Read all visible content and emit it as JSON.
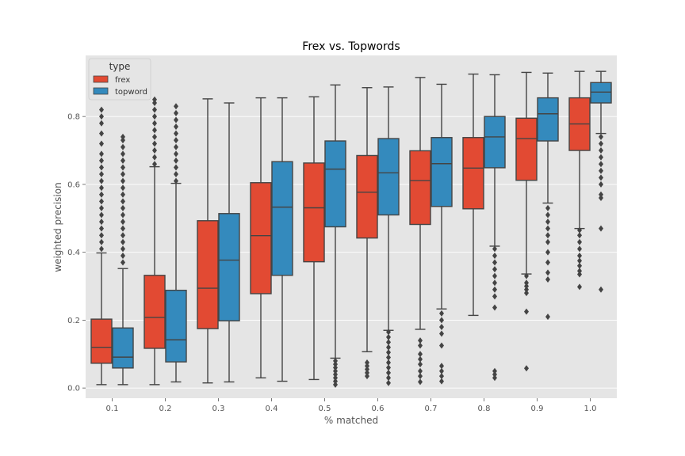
{
  "chart_data": {
    "type": "box",
    "title": "Frex vs. Topwords",
    "xlabel": "% matched",
    "ylabel": "weighted precision",
    "ylim": [
      -0.03,
      0.98
    ],
    "yticks": [
      "0.0",
      "0.2",
      "0.4",
      "0.6",
      "0.8"
    ],
    "ytick_values": [
      0.0,
      0.2,
      0.4,
      0.6,
      0.8
    ],
    "grid": true,
    "legend_position": "top-left",
    "legend_title": "type",
    "categories": [
      "0.1",
      "0.2",
      "0.3",
      "0.4",
      "0.5",
      "0.6",
      "0.7",
      "0.8",
      "0.9",
      "1.0"
    ],
    "series": [
      {
        "name": "frex",
        "color": "#E24A33",
        "boxes": [
          {
            "whisker_low": 0.01,
            "q1": 0.073,
            "median": 0.12,
            "q3": 0.203,
            "whisker_high": 0.398,
            "outliers": [
              0.41,
              0.43,
              0.45,
              0.47,
              0.49,
              0.51,
              0.53,
              0.55,
              0.57,
              0.59,
              0.61,
              0.63,
              0.65,
              0.67,
              0.69,
              0.72,
              0.75,
              0.78,
              0.8,
              0.82
            ]
          },
          {
            "whisker_low": 0.01,
            "q1": 0.117,
            "median": 0.208,
            "q3": 0.332,
            "whisker_high": 0.652,
            "outliers": [
              0.66,
              0.68,
              0.7,
              0.72,
              0.74,
              0.76,
              0.78,
              0.8,
              0.82,
              0.84,
              0.85
            ]
          },
          {
            "whisker_low": 0.015,
            "q1": 0.175,
            "median": 0.294,
            "q3": 0.493,
            "whisker_high": 0.852,
            "outliers": []
          },
          {
            "whisker_low": 0.03,
            "q1": 0.278,
            "median": 0.449,
            "q3": 0.605,
            "whisker_high": 0.855,
            "outliers": []
          },
          {
            "whisker_low": 0.025,
            "q1": 0.372,
            "median": 0.531,
            "q3": 0.663,
            "whisker_high": 0.858,
            "outliers": []
          },
          {
            "whisker_low": 0.107,
            "q1": 0.442,
            "median": 0.577,
            "q3": 0.685,
            "whisker_high": 0.885,
            "outliers": [
              0.035,
              0.045,
              0.055,
              0.065,
              0.075
            ]
          },
          {
            "whisker_low": 0.173,
            "q1": 0.482,
            "median": 0.611,
            "q3": 0.699,
            "whisker_high": 0.915,
            "outliers": [
              0.018,
              0.035,
              0.05,
              0.07,
              0.085,
              0.1,
              0.125,
              0.14
            ]
          },
          {
            "whisker_low": 0.214,
            "q1": 0.528,
            "median": 0.648,
            "q3": 0.738,
            "whisker_high": 0.925,
            "outliers": []
          },
          {
            "whisker_low": 0.336,
            "q1": 0.612,
            "median": 0.735,
            "q3": 0.795,
            "whisker_high": 0.93,
            "outliers": [
              0.058,
              0.225,
              0.28,
              0.29,
              0.3,
              0.31,
              0.33
            ]
          },
          {
            "whisker_low": 0.47,
            "q1": 0.7,
            "median": 0.778,
            "q3": 0.855,
            "whisker_high": 0.933,
            "outliers": [
              0.298,
              0.335,
              0.345,
              0.36,
              0.375,
              0.39,
              0.41,
              0.43,
              0.45,
              0.465
            ]
          }
        ]
      },
      {
        "name": "topword",
        "color": "#348ABD",
        "boxes": [
          {
            "whisker_low": 0.01,
            "q1": 0.059,
            "median": 0.091,
            "q3": 0.177,
            "whisker_high": 0.352,
            "outliers": [
              0.37,
              0.39,
              0.41,
              0.43,
              0.45,
              0.47,
              0.49,
              0.51,
              0.53,
              0.55,
              0.57,
              0.59,
              0.61,
              0.63,
              0.65,
              0.67,
              0.69,
              0.71,
              0.73,
              0.74
            ]
          },
          {
            "whisker_low": 0.018,
            "q1": 0.077,
            "median": 0.142,
            "q3": 0.288,
            "whisker_high": 0.603,
            "outliers": [
              0.61,
              0.63,
              0.65,
              0.67,
              0.69,
              0.71,
              0.73,
              0.75,
              0.77,
              0.79,
              0.81,
              0.83
            ]
          },
          {
            "whisker_low": 0.018,
            "q1": 0.198,
            "median": 0.377,
            "q3": 0.514,
            "whisker_high": 0.84,
            "outliers": []
          },
          {
            "whisker_low": 0.02,
            "q1": 0.332,
            "median": 0.533,
            "q3": 0.667,
            "whisker_high": 0.855,
            "outliers": []
          },
          {
            "whisker_low": 0.088,
            "q1": 0.475,
            "median": 0.645,
            "q3": 0.728,
            "whisker_high": 0.893,
            "outliers": [
              0.01,
              0.02,
              0.03,
              0.04,
              0.05,
              0.06,
              0.07,
              0.08
            ]
          },
          {
            "whisker_low": 0.17,
            "q1": 0.51,
            "median": 0.634,
            "q3": 0.735,
            "whisker_high": 0.887,
            "outliers": [
              0.015,
              0.03,
              0.045,
              0.06,
              0.075,
              0.09,
              0.105,
              0.12,
              0.135,
              0.15,
              0.165
            ]
          },
          {
            "whisker_low": 0.233,
            "q1": 0.535,
            "median": 0.661,
            "q3": 0.738,
            "whisker_high": 0.895,
            "outliers": [
              0.02,
              0.035,
              0.05,
              0.065,
              0.125,
              0.16,
              0.18,
              0.2,
              0.22
            ]
          },
          {
            "whisker_low": 0.418,
            "q1": 0.649,
            "median": 0.74,
            "q3": 0.8,
            "whisker_high": 0.923,
            "outliers": [
              0.03,
              0.04,
              0.05,
              0.237,
              0.27,
              0.29,
              0.31,
              0.33,
              0.35,
              0.37,
              0.39,
              0.41
            ]
          },
          {
            "whisker_low": 0.545,
            "q1": 0.728,
            "median": 0.808,
            "q3": 0.855,
            "whisker_high": 0.928,
            "outliers": [
              0.21,
              0.32,
              0.34,
              0.37,
              0.4,
              0.43,
              0.45,
              0.47,
              0.49,
              0.51,
              0.53
            ]
          },
          {
            "whisker_low": 0.75,
            "q1": 0.84,
            "median": 0.872,
            "q3": 0.9,
            "whisker_high": 0.933,
            "outliers": [
              0.29,
              0.47,
              0.56,
              0.57,
              0.6,
              0.62,
              0.64,
              0.66,
              0.68,
              0.7,
              0.72,
              0.74
            ]
          }
        ]
      }
    ]
  }
}
